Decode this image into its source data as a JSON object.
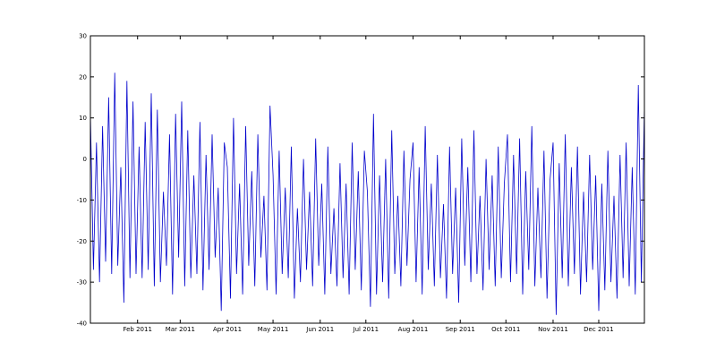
{
  "chart_data": {
    "type": "line",
    "title": "",
    "xlabel": "",
    "ylabel": "",
    "xlim": [
      "2011-01-01",
      "2011-12-31"
    ],
    "ylim": [
      -40,
      30
    ],
    "yticks": [
      30,
      20,
      10,
      0,
      -10,
      -20,
      -30,
      -40
    ],
    "xticks": [
      {
        "date": "2011-02-01",
        "label": "Feb 2011"
      },
      {
        "date": "2011-03-01",
        "label": "Mar 2011"
      },
      {
        "date": "2011-04-01",
        "label": "Apr 2011"
      },
      {
        "date": "2011-05-01",
        "label": "May 2011"
      },
      {
        "date": "2011-06-01",
        "label": "Jun 2011"
      },
      {
        "date": "2011-07-01",
        "label": "Jul 2011"
      },
      {
        "date": "2011-08-01",
        "label": "Aug 2011"
      },
      {
        "date": "2011-09-01",
        "label": "Sep 2011"
      },
      {
        "date": "2011-10-01",
        "label": "Oct 2011"
      },
      {
        "date": "2011-11-01",
        "label": "Nov 2011"
      },
      {
        "date": "2011-12-01",
        "label": "Dec 2011"
      }
    ],
    "grid": false,
    "legend": "none",
    "series": [
      {
        "color": "#0000cc",
        "x": [
          "2011-01-01",
          "2011-01-03",
          "2011-01-05",
          "2011-01-07",
          "2011-01-09",
          "2011-01-11",
          "2011-01-13",
          "2011-01-15",
          "2011-01-17",
          "2011-01-19",
          "2011-01-21",
          "2011-01-23",
          "2011-01-25",
          "2011-01-27",
          "2011-01-29",
          "2011-01-31",
          "2011-02-02",
          "2011-02-04",
          "2011-02-06",
          "2011-02-08",
          "2011-02-10",
          "2011-02-12",
          "2011-02-14",
          "2011-02-16",
          "2011-02-18",
          "2011-02-20",
          "2011-02-22",
          "2011-02-24",
          "2011-02-26",
          "2011-02-28",
          "2011-03-02",
          "2011-03-04",
          "2011-03-06",
          "2011-03-08",
          "2011-03-10",
          "2011-03-12",
          "2011-03-14",
          "2011-03-16",
          "2011-03-18",
          "2011-03-20",
          "2011-03-22",
          "2011-03-24",
          "2011-03-26",
          "2011-03-28",
          "2011-03-30",
          "2011-04-01",
          "2011-04-03",
          "2011-04-05",
          "2011-04-07",
          "2011-04-09",
          "2011-04-11",
          "2011-04-13",
          "2011-04-15",
          "2011-04-17",
          "2011-04-19",
          "2011-04-21",
          "2011-04-23",
          "2011-04-25",
          "2011-04-27",
          "2011-04-29",
          "2011-05-01",
          "2011-05-03",
          "2011-05-05",
          "2011-05-07",
          "2011-05-09",
          "2011-05-11",
          "2011-05-13",
          "2011-05-15",
          "2011-05-17",
          "2011-05-19",
          "2011-05-21",
          "2011-05-23",
          "2011-05-25",
          "2011-05-27",
          "2011-05-29",
          "2011-05-31",
          "2011-06-02",
          "2011-06-04",
          "2011-06-06",
          "2011-06-08",
          "2011-06-10",
          "2011-06-12",
          "2011-06-14",
          "2011-06-16",
          "2011-06-18",
          "2011-06-20",
          "2011-06-22",
          "2011-06-24",
          "2011-06-26",
          "2011-06-28",
          "2011-06-30",
          "2011-07-02",
          "2011-07-04",
          "2011-07-06",
          "2011-07-08",
          "2011-07-10",
          "2011-07-12",
          "2011-07-14",
          "2011-07-16",
          "2011-07-18",
          "2011-07-20",
          "2011-07-22",
          "2011-07-24",
          "2011-07-26",
          "2011-07-28",
          "2011-07-30",
          "2011-08-01",
          "2011-08-03",
          "2011-08-05",
          "2011-08-07",
          "2011-08-09",
          "2011-08-11",
          "2011-08-13",
          "2011-08-15",
          "2011-08-17",
          "2011-08-19",
          "2011-08-21",
          "2011-08-23",
          "2011-08-25",
          "2011-08-27",
          "2011-08-29",
          "2011-08-31",
          "2011-09-02",
          "2011-09-04",
          "2011-09-06",
          "2011-09-08",
          "2011-09-10",
          "2011-09-12",
          "2011-09-14",
          "2011-09-16",
          "2011-09-18",
          "2011-09-20",
          "2011-09-22",
          "2011-09-24",
          "2011-09-26",
          "2011-09-28",
          "2011-09-30",
          "2011-10-02",
          "2011-10-04",
          "2011-10-06",
          "2011-10-08",
          "2011-10-10",
          "2011-10-12",
          "2011-10-14",
          "2011-10-16",
          "2011-10-18",
          "2011-10-20",
          "2011-10-22",
          "2011-10-24",
          "2011-10-26",
          "2011-10-28",
          "2011-10-30",
          "2011-11-01",
          "2011-11-03",
          "2011-11-05",
          "2011-11-07",
          "2011-11-09",
          "2011-11-11",
          "2011-11-13",
          "2011-11-15",
          "2011-11-17",
          "2011-11-19",
          "2011-11-21",
          "2011-11-23",
          "2011-11-25",
          "2011-11-27",
          "2011-11-29",
          "2011-12-01",
          "2011-12-03",
          "2011-12-05",
          "2011-12-07",
          "2011-12-09",
          "2011-12-11",
          "2011-12-13",
          "2011-12-15",
          "2011-12-17",
          "2011-12-19",
          "2011-12-21",
          "2011-12-23",
          "2011-12-25",
          "2011-12-27",
          "2011-12-29",
          "2011-12-31"
        ],
        "y": [
          11,
          -27,
          4,
          -30,
          8,
          -25,
          15,
          -28,
          21,
          -26,
          -2,
          -35,
          19,
          -29,
          14,
          -28,
          3,
          -29,
          9,
          -27,
          16,
          -31,
          12,
          -30,
          -8,
          -26,
          6,
          -33,
          11,
          -24,
          14,
          -31,
          7,
          -29,
          -4,
          -28,
          9,
          -32,
          1,
          -27,
          6,
          -24,
          -7,
          -37,
          4,
          -2,
          -34,
          10,
          -28,
          -6,
          -33,
          8,
          -26,
          -3,
          -31,
          6,
          -24,
          -9,
          -32,
          13,
          -4,
          -33,
          2,
          -28,
          -7,
          -29,
          3,
          -34,
          -12,
          -30,
          0,
          -27,
          -8,
          -31,
          5,
          -26,
          -6,
          -33,
          3,
          -28,
          -12,
          -31,
          -1,
          -29,
          -6,
          -33,
          4,
          -27,
          -3,
          -32,
          2,
          -8,
          -36,
          11,
          -33,
          -4,
          -30,
          0,
          -34,
          7,
          -28,
          -9,
          -31,
          2,
          -26,
          -5,
          4,
          -30,
          -2,
          -33,
          8,
          -27,
          -6,
          -31,
          1,
          -29,
          -11,
          -34,
          3,
          -28,
          -7,
          -35,
          5,
          -26,
          -2,
          -30,
          7,
          -28,
          -9,
          -32,
          0,
          -27,
          -4,
          -31,
          3,
          -29,
          -6,
          6,
          -30,
          1,
          -28,
          5,
          -33,
          -3,
          -27,
          8,
          -31,
          -7,
          -29,
          2,
          -34,
          -5,
          4,
          -38,
          -1,
          -29,
          6,
          -31,
          -2,
          -28,
          3,
          -33,
          -8,
          -30,
          1,
          -27,
          -4,
          -37,
          -6,
          -32,
          2,
          -30,
          -9,
          -34,
          1,
          -29,
          4,
          -31,
          -2,
          -33,
          18,
          -30,
          13
        ]
      }
    ]
  }
}
